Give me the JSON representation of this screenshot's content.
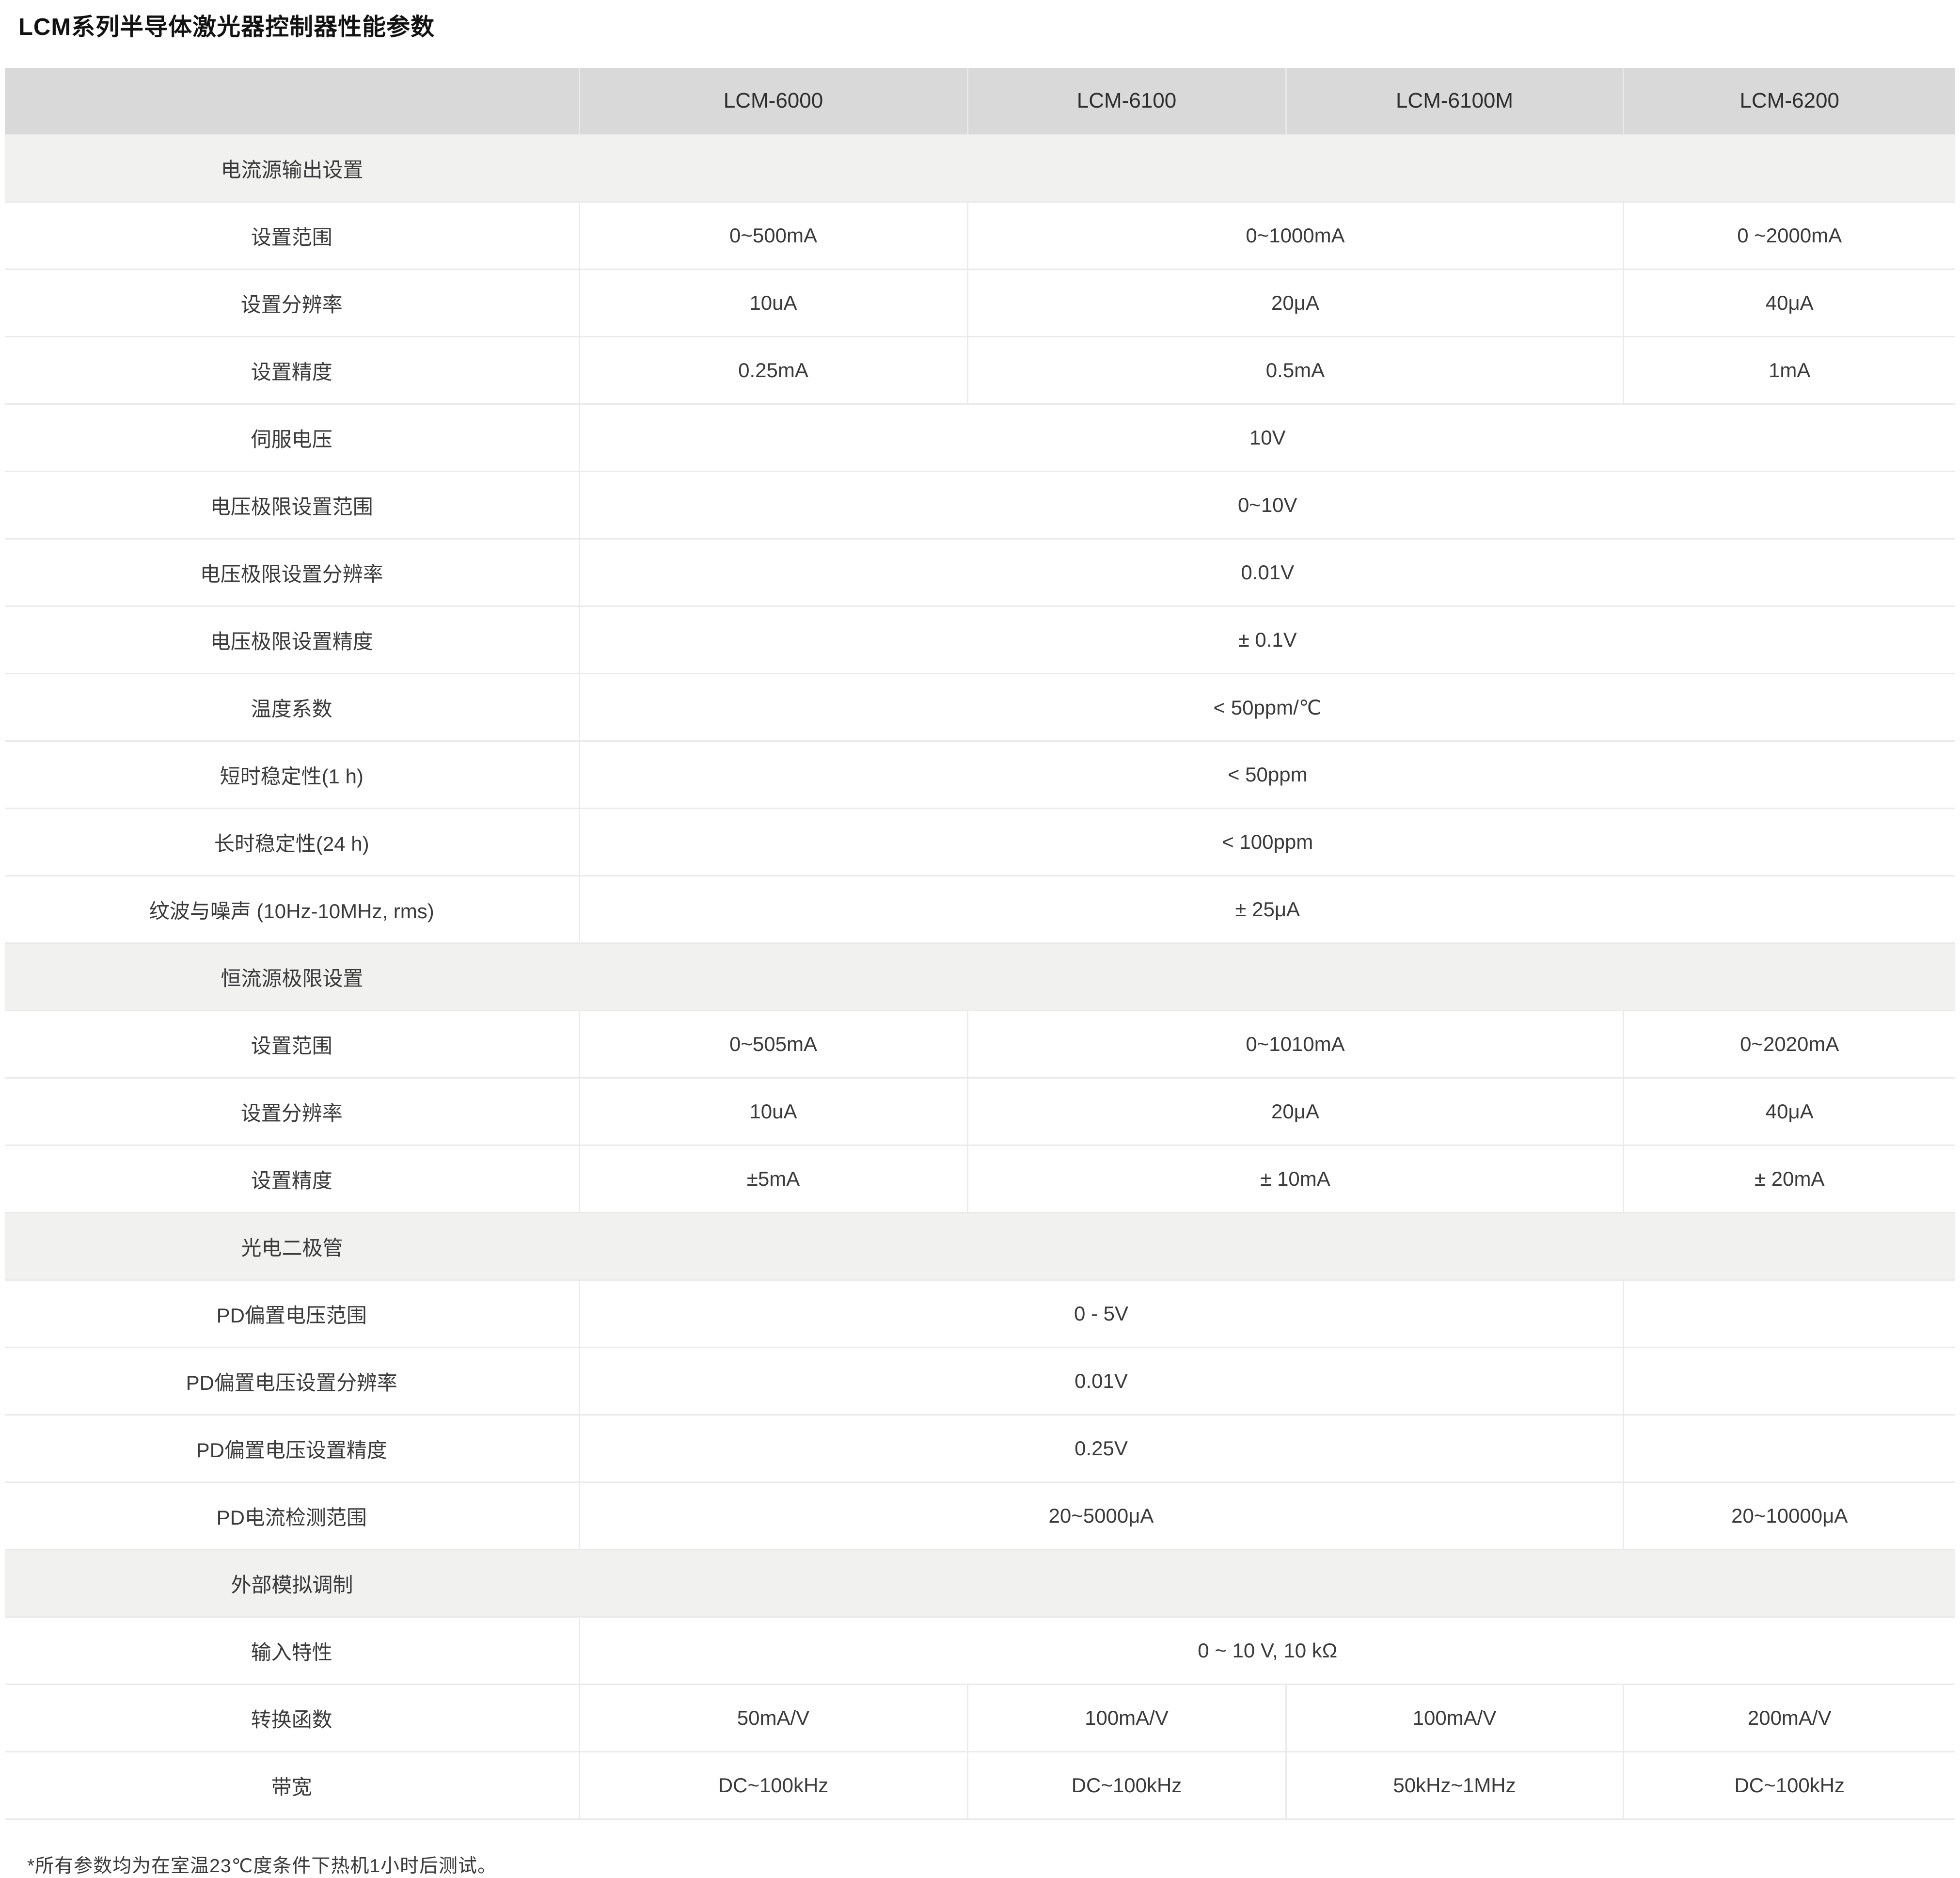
{
  "page": {
    "title": "LCM系列半导体激光器控制器性能参数",
    "footnote": "*所有参数均为在室温23℃度条件下热机1小时后测试。"
  },
  "colors": {
    "header_background": "#d9d9d9",
    "section_background": "#f1f1f0",
    "row_border": "#eaeaea",
    "text": "#3a3a3a",
    "title_text": "#121212"
  },
  "table": {
    "columns": [
      "",
      "LCM-6000",
      "LCM-6100",
      "LCM-6100M",
      "LCM-6200"
    ],
    "rows": [
      {
        "type": "section",
        "label": "电流源输出设置"
      },
      {
        "type": "data",
        "label": "设置范围",
        "cells": [
          {
            "text": "0~500mA",
            "span": 1
          },
          {
            "text": "0~1000mA",
            "span": 2
          },
          {
            "text": "0 ~2000mA",
            "span": 1
          }
        ]
      },
      {
        "type": "data",
        "label": "设置分辨率",
        "cells": [
          {
            "text": "10uA",
            "span": 1
          },
          {
            "text": "20μA",
            "span": 2
          },
          {
            "text": "40μA",
            "span": 1
          }
        ]
      },
      {
        "type": "data",
        "label": "设置精度",
        "cells": [
          {
            "text": "0.25mA",
            "span": 1
          },
          {
            "text": "0.5mA",
            "span": 2
          },
          {
            "text": "1mA",
            "span": 1
          }
        ]
      },
      {
        "type": "data",
        "label": "伺服电压",
        "cells": [
          {
            "text": "10V",
            "span": 4
          }
        ]
      },
      {
        "type": "data",
        "label": "电压极限设置范围",
        "cells": [
          {
            "text": "0~10V",
            "span": 4
          }
        ]
      },
      {
        "type": "data",
        "label": "电压极限设置分辨率",
        "cells": [
          {
            "text": "0.01V",
            "span": 4
          }
        ]
      },
      {
        "type": "data",
        "label": "电压极限设置精度",
        "cells": [
          {
            "text": "± 0.1V",
            "span": 4
          }
        ]
      },
      {
        "type": "data",
        "label": "温度系数",
        "cells": [
          {
            "text": "< 50ppm/℃",
            "span": 4
          }
        ]
      },
      {
        "type": "data",
        "label": "短时稳定性(1 h)",
        "cells": [
          {
            "text": "< 50ppm",
            "span": 4
          }
        ]
      },
      {
        "type": "data",
        "label": "长时稳定性(24 h)",
        "cells": [
          {
            "text": "< 100ppm",
            "span": 4
          }
        ]
      },
      {
        "type": "data",
        "label": "纹波与噪声 (10Hz-10MHz, rms)",
        "cells": [
          {
            "text": "± 25μA",
            "span": 4
          }
        ]
      },
      {
        "type": "section",
        "label": "恒流源极限设置"
      },
      {
        "type": "data",
        "label": "设置范围",
        "cells": [
          {
            "text": "0~505mA",
            "span": 1
          },
          {
            "text": "0~1010mA",
            "span": 2
          },
          {
            "text": "0~2020mA",
            "span": 1
          }
        ]
      },
      {
        "type": "data",
        "label": "设置分辨率",
        "cells": [
          {
            "text": "10uA",
            "span": 1
          },
          {
            "text": "20μA",
            "span": 2
          },
          {
            "text": "40μA",
            "span": 1
          }
        ]
      },
      {
        "type": "data",
        "label": "设置精度",
        "cells": [
          {
            "text": "±5mA",
            "span": 1
          },
          {
            "text": "± 10mA",
            "span": 2
          },
          {
            "text": "± 20mA",
            "span": 1
          }
        ]
      },
      {
        "type": "section",
        "label": "光电二极管"
      },
      {
        "type": "data",
        "label": "PD偏置电压范围",
        "cells": [
          {
            "text": "0 - 5V",
            "span": 3
          },
          {
            "text": "",
            "span": 1
          }
        ]
      },
      {
        "type": "data",
        "label": "PD偏置电压设置分辨率",
        "cells": [
          {
            "text": "0.01V",
            "span": 3
          },
          {
            "text": "",
            "span": 1
          }
        ]
      },
      {
        "type": "data",
        "label": "PD偏置电压设置精度",
        "cells": [
          {
            "text": "0.25V",
            "span": 3
          },
          {
            "text": "",
            "span": 1
          }
        ]
      },
      {
        "type": "data",
        "label": "PD电流检测范围",
        "cells": [
          {
            "text": "20~5000μA",
            "span": 3
          },
          {
            "text": "20~10000μA",
            "span": 1
          }
        ]
      },
      {
        "type": "section",
        "label": "外部模拟调制"
      },
      {
        "type": "data",
        "label": "输入特性",
        "cells": [
          {
            "text": "0 ~ 10 V, 10 kΩ",
            "span": 4
          }
        ]
      },
      {
        "type": "data",
        "label": "转换函数",
        "cells": [
          {
            "text": "50mA/V",
            "span": 1
          },
          {
            "text": "100mA/V",
            "span": 1
          },
          {
            "text": "100mA/V",
            "span": 1
          },
          {
            "text": "200mA/V",
            "span": 1
          }
        ]
      },
      {
        "type": "data",
        "label": "带宽",
        "cells": [
          {
            "text": "DC~100kHz",
            "span": 1
          },
          {
            "text": "DC~100kHz",
            "span": 1
          },
          {
            "text": "50kHz~1MHz",
            "span": 1
          },
          {
            "text": "DC~100kHz",
            "span": 1
          }
        ]
      }
    ]
  }
}
